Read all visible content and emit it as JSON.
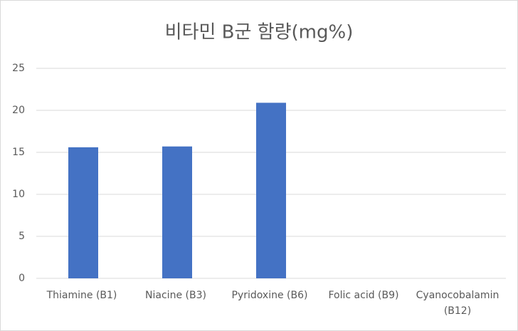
{
  "chart_data": {
    "type": "bar",
    "title": "비타민 B군 함량(mg%)",
    "categories": [
      "Thiamine (B1)",
      "Niacine (B3)",
      "Pyridoxine (B6)",
      "Folic acid (B9)",
      "Cyanocobalamin (B12)"
    ],
    "values": [
      15.6,
      15.7,
      20.9,
      0,
      0
    ],
    "color": "#4472c4",
    "ylim": [
      0,
      25
    ],
    "yticks": [
      0,
      5,
      10,
      15,
      20,
      25
    ],
    "grid": true
  }
}
